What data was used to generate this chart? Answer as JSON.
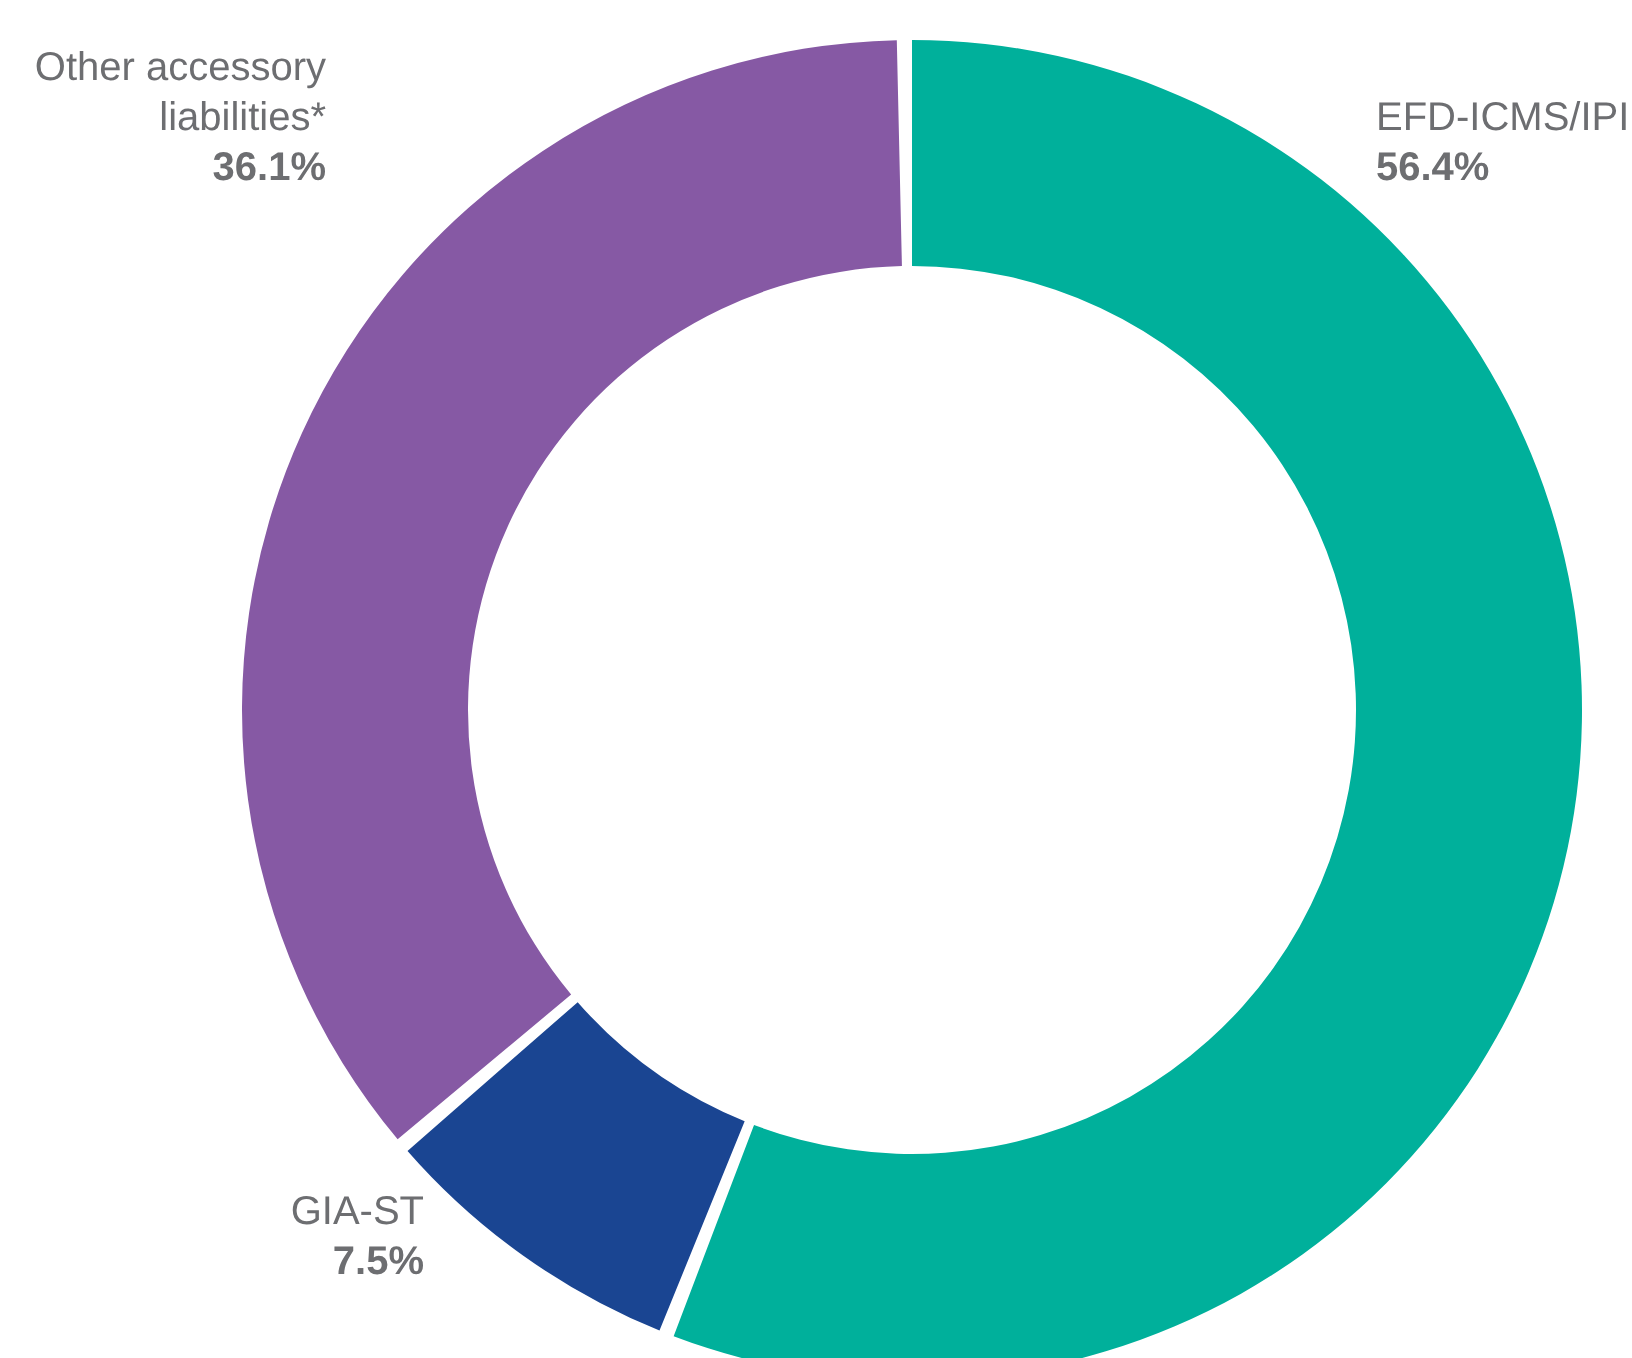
{
  "chart_data": {
    "type": "donut",
    "categories": [
      "EFD-ICMS/IPI",
      "GIA-ST",
      "Other accessory liabilities*"
    ],
    "values": [
      56.4,
      7.5,
      36.1
    ],
    "value_labels": [
      "56.4%",
      "7.5%",
      "36.1%"
    ],
    "colors": [
      "#00b09b",
      "#1a4592",
      "#8659a4"
    ],
    "legend": false
  }
}
